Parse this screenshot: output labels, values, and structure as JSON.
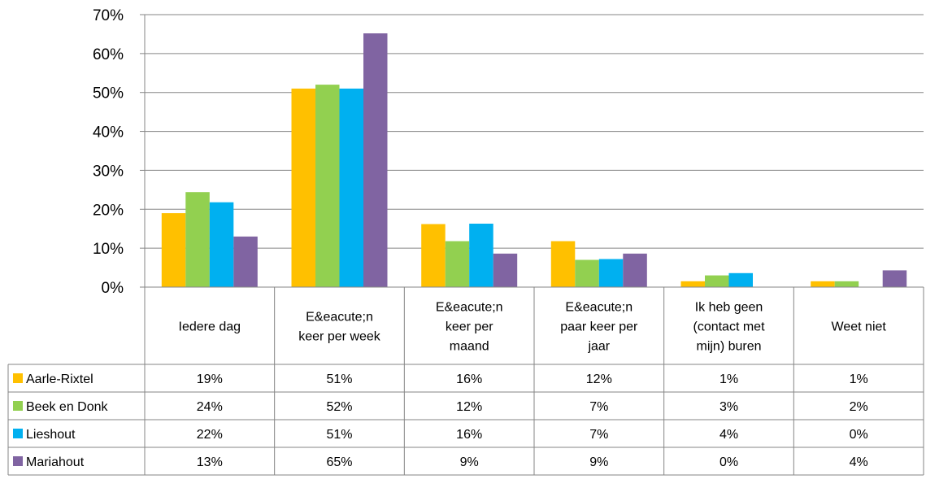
{
  "chart_data": {
    "type": "bar",
    "categories": [
      "Iedere dag",
      "E&eacute;n keer per week",
      "E&eacute;n keer per maand",
      "E&eacute;n paar keer per jaar",
      "Ik heb geen (contact met mijn) buren",
      "Weet niet"
    ],
    "category_lines": [
      [
        "Iedere dag"
      ],
      [
        "E&eacute;n",
        "keer per week"
      ],
      [
        "E&eacute;n",
        "keer per",
        "maand"
      ],
      [
        "E&eacute;n",
        "paar keer per",
        "jaar"
      ],
      [
        "Ik heb geen",
        "(contact met",
        "mijn) buren"
      ],
      [
        "Weet niet"
      ]
    ],
    "series": [
      {
        "name": "Aarle-Rixtel",
        "color": "#FFC000",
        "values": [
          19.0,
          51.0,
          16.2,
          11.8,
          1.5,
          1.5
        ],
        "labels": [
          "19%",
          "51%",
          "16%",
          "12%",
          "1%",
          "1%"
        ]
      },
      {
        "name": "Beek en Donk",
        "color": "#92D050",
        "values": [
          24.4,
          52.0,
          11.8,
          7.0,
          3.0,
          1.5
        ],
        "labels": [
          "24%",
          "52%",
          "12%",
          "7%",
          "3%",
          "2%"
        ]
      },
      {
        "name": "Lieshout",
        "color": "#00B0F0",
        "values": [
          21.8,
          51.0,
          16.3,
          7.2,
          3.6,
          0.0
        ],
        "labels": [
          "22%",
          "51%",
          "16%",
          "7%",
          "4%",
          "0%"
        ]
      },
      {
        "name": "Mariahout",
        "color": "#8064A2",
        "values": [
          13.0,
          65.2,
          8.6,
          8.6,
          0.0,
          4.3
        ],
        "labels": [
          "13%",
          "65%",
          "9%",
          "9%",
          "0%",
          "4%"
        ]
      }
    ],
    "y_ticks": [
      "0%",
      "10%",
      "20%",
      "30%",
      "40%",
      "50%",
      "60%",
      "70%"
    ],
    "ylim": [
      0,
      70
    ],
    "grid": true,
    "legend": "data-table"
  }
}
